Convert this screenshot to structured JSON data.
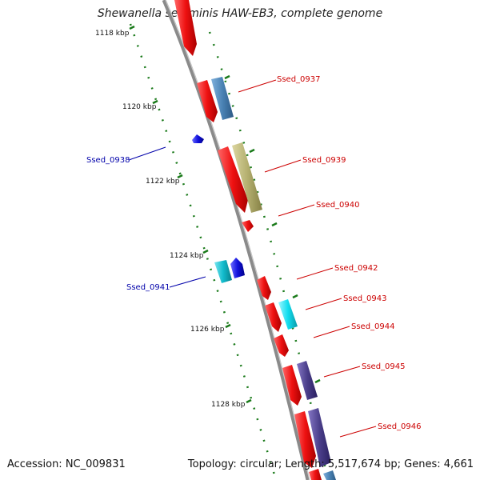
{
  "title": "Shewanella sediminis HAW-EB3, complete genome",
  "footer": {
    "accession": "Accession: NC_009831",
    "topology": "Topology: circular; Length: 5,517,674 bp; Genes: 4,661"
  },
  "colors": {
    "backbone": "#8a8a8a",
    "ruler": "#1a7a1a",
    "red_label": "#cc0000",
    "blue_label": "#0000aa",
    "red": "#ee1111",
    "steelblue": "#4a82b4",
    "olive": "#b5b070",
    "blue": "#1111dd",
    "cyan": "#11bbcc",
    "bright_cyan": "#11ddee",
    "purple": "#4a3e8a"
  },
  "ruler_labels": [
    "1118 kbp",
    "1120 kbp",
    "1122 kbp",
    "1124 kbp",
    "1126 kbp",
    "1128 kbp"
  ],
  "genes": [
    {
      "label": "Ssed_0937",
      "side": "right",
      "color": "red"
    },
    {
      "label": "Ssed_0938",
      "side": "left",
      "color": "blue"
    },
    {
      "label": "Ssed_0939",
      "side": "right",
      "color": "red"
    },
    {
      "label": "Ssed_0940",
      "side": "right",
      "color": "red"
    },
    {
      "label": "Ssed_0941",
      "side": "left",
      "color": "blue"
    },
    {
      "label": "Ssed_0942",
      "side": "right",
      "color": "red"
    },
    {
      "label": "Ssed_0943",
      "side": "right",
      "color": "red"
    },
    {
      "label": "Ssed_0944",
      "side": "right",
      "color": "red"
    },
    {
      "label": "Ssed_0945",
      "side": "right",
      "color": "red"
    },
    {
      "label": "Ssed_0946",
      "side": "right",
      "color": "red"
    }
  ]
}
